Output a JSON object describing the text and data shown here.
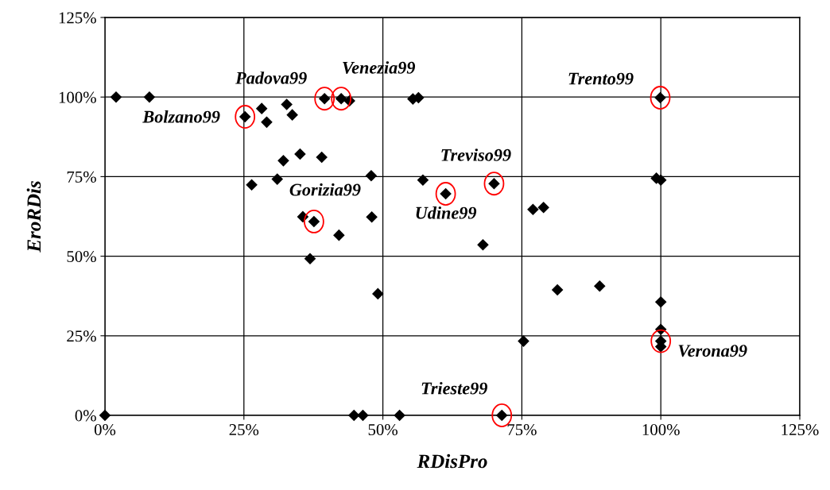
{
  "chart_data": {
    "type": "scatter",
    "xlabel": "RDisPro",
    "ylabel": "EroRDis",
    "x": [
      2,
      8,
      25.2,
      28.2,
      29.1,
      32.7,
      33.7,
      39.5,
      42.5,
      44.0,
      55.4,
      56.4,
      35.1,
      39.0,
      32.1,
      31.0,
      26.4,
      35.6,
      37.6,
      42.1,
      36.9,
      47.9,
      57.2,
      61.3,
      70.0,
      48.0,
      77.0,
      78.9,
      68.0,
      49.1,
      81.4,
      75.3,
      0,
      44.8,
      46.4,
      53.0,
      71.4,
      99.9,
      99.2,
      100,
      89.0,
      100,
      100,
      100,
      100
    ],
    "values": [
      100,
      100,
      93.8,
      96.4,
      92.1,
      97.7,
      94.4,
      99.5,
      99.5,
      98.8,
      99.4,
      99.8,
      82.1,
      81.1,
      80.0,
      74.2,
      72.4,
      62.4,
      60.9,
      56.6,
      49.2,
      75.3,
      73.9,
      69.6,
      72.8,
      62.3,
      64.7,
      65.3,
      53.6,
      38.2,
      39.4,
      23.3,
      0,
      0,
      0,
      0,
      0,
      99.8,
      74.5,
      73.9,
      40.6,
      35.6,
      27.0,
      23.3,
      21.6
    ],
    "color": "#000000",
    "marker": "diamond",
    "grid": true,
    "legend": false,
    "xlim": [
      0,
      125
    ],
    "ylim": [
      0,
      125
    ],
    "xticks": [
      {
        "value": 0,
        "label": "0%"
      },
      {
        "value": 25,
        "label": "25%"
      },
      {
        "value": 50,
        "label": "50%"
      },
      {
        "value": 75,
        "label": "75%"
      },
      {
        "value": 100,
        "label": "100%"
      },
      {
        "value": 125,
        "label": "125%"
      }
    ],
    "yticks": [
      {
        "value": 0,
        "label": "0%"
      },
      {
        "value": 25,
        "label": "25%"
      },
      {
        "value": 50,
        "label": "50%"
      },
      {
        "value": 75,
        "label": "75%"
      },
      {
        "value": 100,
        "label": "100%"
      },
      {
        "value": 125,
        "label": "125%"
      }
    ],
    "annotations": [
      {
        "text": "Bolzano99",
        "x": 25.2,
        "y": 93.8
      },
      {
        "text": "Padova99",
        "x": 39.5,
        "y": 99.5
      },
      {
        "text": "Venezia99",
        "x": 42.5,
        "y": 99.5
      },
      {
        "text": "Trento99",
        "x": 99.9,
        "y": 99.8
      },
      {
        "text": "Treviso99",
        "x": 70.0,
        "y": 72.8
      },
      {
        "text": "Udine99",
        "x": 61.3,
        "y": 69.6
      },
      {
        "text": "Gorizia99",
        "x": 37.6,
        "y": 60.9
      },
      {
        "text": "Verona99",
        "x": 100,
        "y": 23.3
      },
      {
        "text": "Trieste99",
        "x": 71.4,
        "y": 0
      }
    ]
  }
}
